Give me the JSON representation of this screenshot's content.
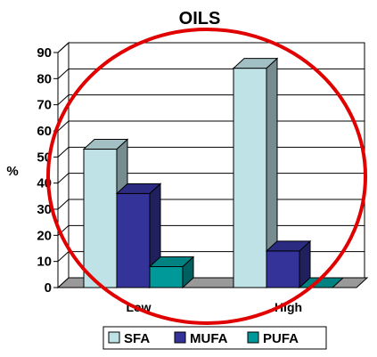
{
  "chart_data": {
    "type": "bar",
    "title": "OILS",
    "ylabel": "%",
    "xlabel": "",
    "ylim": [
      0,
      90
    ],
    "yticks": [
      0,
      10,
      20,
      30,
      40,
      50,
      60,
      70,
      80,
      90
    ],
    "categories": [
      "Low",
      "High"
    ],
    "series": [
      {
        "name": "SFA",
        "values": [
          53,
          84
        ]
      },
      {
        "name": "MUFA",
        "values": [
          36,
          14
        ]
      },
      {
        "name": "PUFA",
        "values": [
          8,
          0
        ]
      }
    ],
    "grid": true,
    "legend": "bottom",
    "style": "3d-column",
    "colors": {
      "SFA": "#bfe2e6",
      "MUFA": "#333399",
      "PUFA": "#009999",
      "annotation_circle": "#e00000"
    }
  }
}
